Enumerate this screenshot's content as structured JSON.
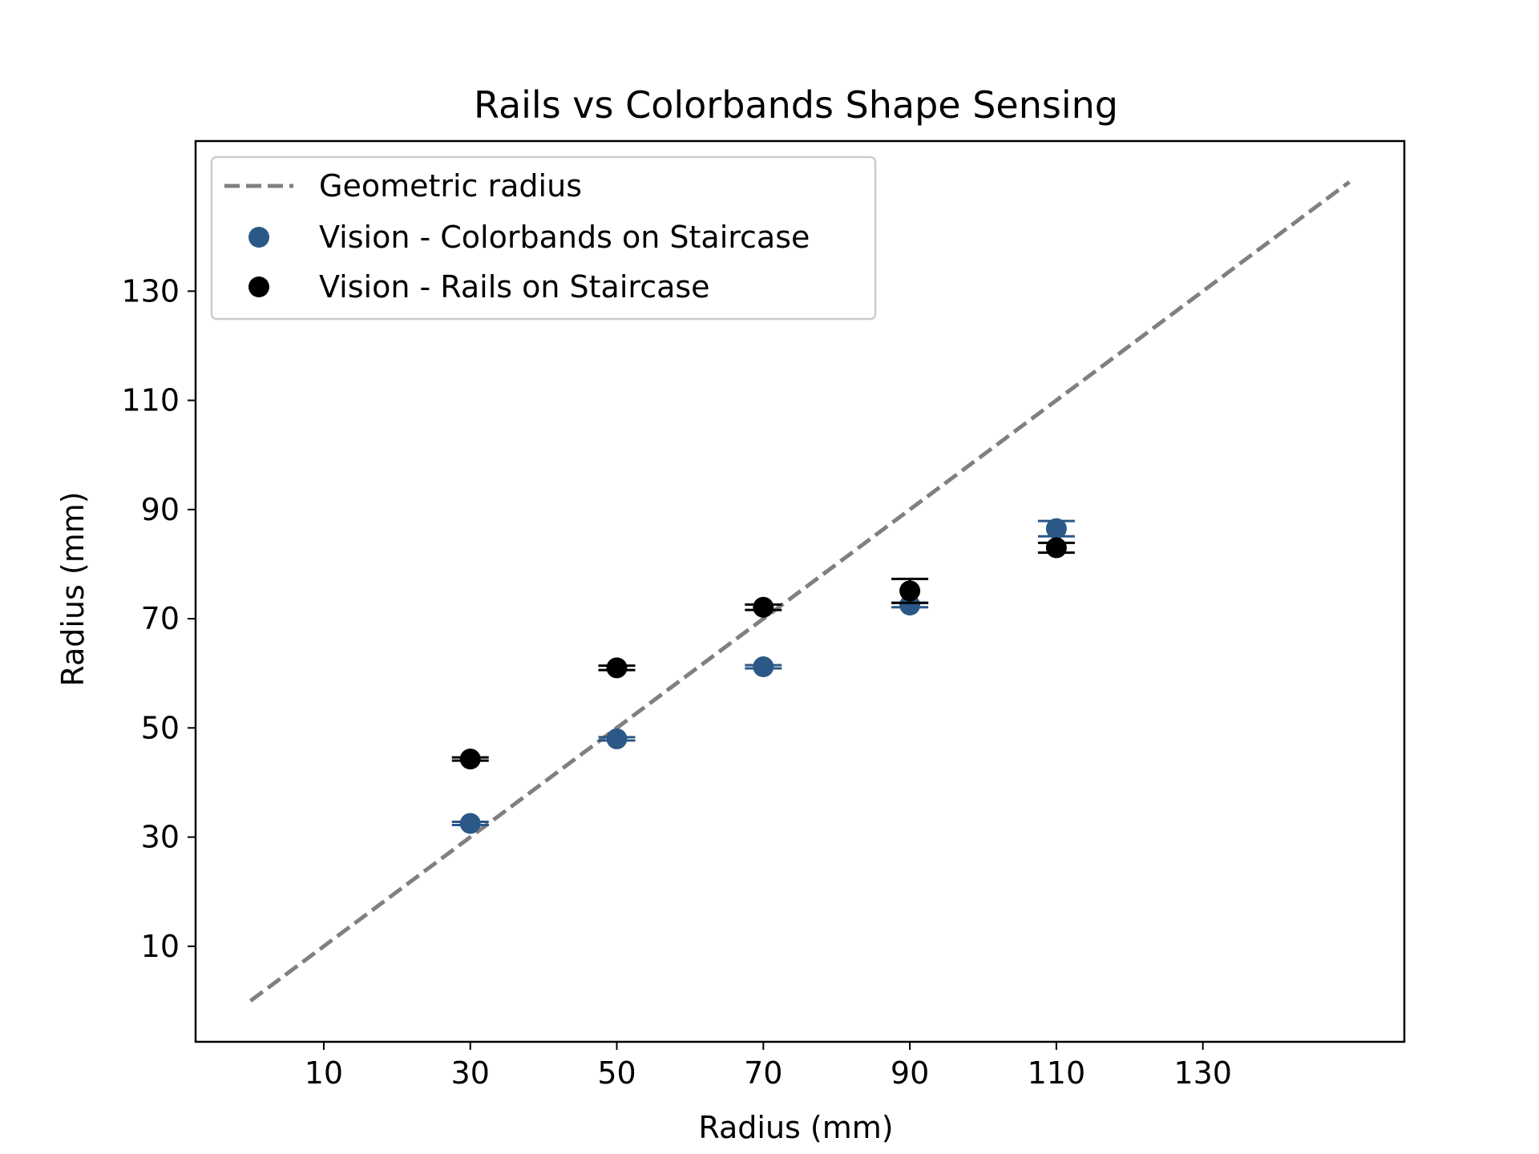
{
  "chart_data": {
    "type": "scatter",
    "title": "Rails vs Colorbands Shape Sensing",
    "xlabel": "Radius (mm)",
    "ylabel": "Radius (mm)",
    "xlim": [
      -7.5,
      157.5
    ],
    "ylim": [
      -7.5,
      157.5
    ],
    "xticks": [
      10,
      30,
      50,
      70,
      90,
      110,
      130
    ],
    "yticks": [
      10,
      30,
      50,
      70,
      90,
      110,
      130
    ],
    "grid": false,
    "legend_position": "upper-left",
    "reference_line": {
      "name": "Geometric radius",
      "x": [
        0,
        150
      ],
      "y": [
        0,
        150
      ],
      "style": "dashed",
      "color": "#808080"
    },
    "series": [
      {
        "name": "Vision - Colorbands on Staircase",
        "color": "#2b5887",
        "x": [
          30,
          50,
          70,
          90,
          110
        ],
        "y": [
          32.5,
          48,
          61.2,
          72.5,
          86.5
        ],
        "yerr": [
          0.3,
          0.3,
          0.3,
          0.4,
          1.4
        ]
      },
      {
        "name": "Vision - Rails on Staircase",
        "color": "#000000",
        "x": [
          30,
          50,
          70,
          90,
          110
        ],
        "y": [
          44.3,
          61,
          72.1,
          75.1,
          83
        ],
        "yerr": [
          0.3,
          0.4,
          0.5,
          2.2,
          0.9
        ]
      }
    ]
  }
}
